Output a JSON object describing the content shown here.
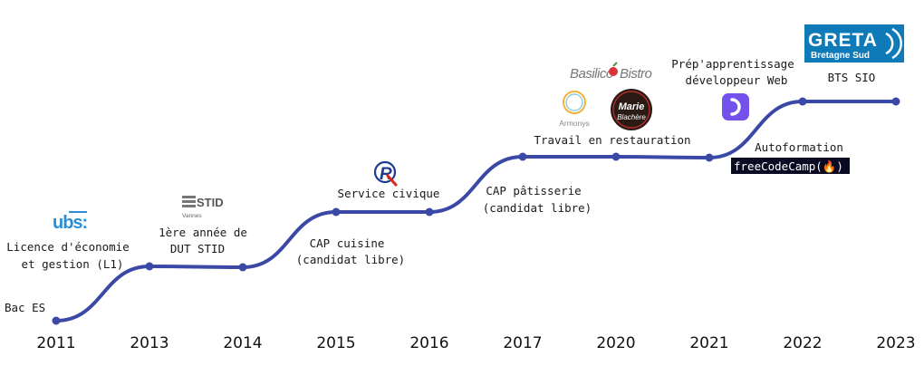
{
  "colors": {
    "curve": "#3b49a6",
    "point": "#3b49a6"
  },
  "timeline": {
    "years": [
      "2011",
      "2013",
      "2014",
      "2015",
      "2016",
      "2017",
      "2020",
      "2021",
      "2022",
      "2023"
    ],
    "events": [
      {
        "lines": [
          "Bac ES"
        ]
      },
      {
        "lines": [
          "Licence d'économie",
          "et gestion (L1)"
        ]
      },
      {
        "lines": [
          "1ère année de",
          "DUT STID"
        ]
      },
      {
        "lines": [
          "CAP cuisine",
          "(candidat libre)"
        ]
      },
      {
        "lines": [
          "Service civique"
        ]
      },
      {
        "lines": [
          "CAP pâtisserie",
          "(candidat libre)"
        ]
      },
      {
        "lines": [
          "Travail en restauration"
        ]
      },
      {
        "lines": [
          "Prép'apprentissage",
          "développeur Web"
        ]
      },
      {
        "lines": [
          "Autoformation"
        ]
      },
      {
        "lines": [
          "BTS SIO"
        ]
      }
    ]
  },
  "logos": {
    "ubs": {
      "text": "ubs:",
      "icon": "ubs-university-logo"
    },
    "stid": {
      "text": "STID",
      "sub": "Vannes",
      "icon": "stid-logo"
    },
    "service_civique": {
      "icon": "service-civique-r-logo"
    },
    "basilico": {
      "text_a": "Basilico",
      "text_b": "Bistro",
      "icon": "basilico-bistro-logo"
    },
    "armonys": {
      "text": "Armonys",
      "icon": "armonys-logo"
    },
    "marie_blachere": {
      "text_a": "Marie",
      "text_b": "Blachère",
      "icon": "marie-blachere-logo"
    },
    "openclassrooms": {
      "icon": "openclassrooms-logo"
    },
    "freecodecamp": {
      "text": "freeCodeCamp(🔥)",
      "icon": "freecodecamp-logo"
    },
    "greta": {
      "text_a": "GRETA",
      "text_b": "Bretagne Sud",
      "icon": "greta-logo"
    }
  }
}
